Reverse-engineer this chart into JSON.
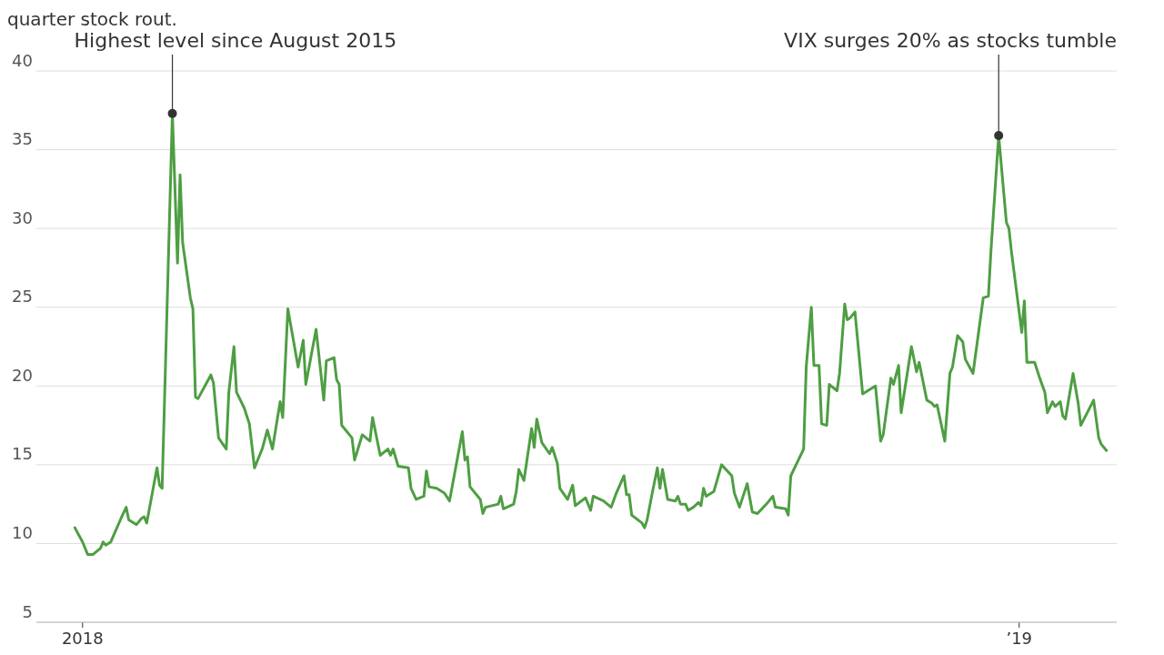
{
  "chart_data": {
    "type": "line",
    "title": "quarter stock rout.",
    "xlim": [
      "2017-12-14",
      "2019-02-08"
    ],
    "xticks": [
      {
        "value": "2018-01-01",
        "label": "2018"
      },
      {
        "value": "2019-01-01",
        "label": "’19"
      }
    ],
    "ylim": [
      5,
      40
    ],
    "yticks": [
      5,
      10,
      15,
      20,
      25,
      30,
      35,
      40
    ],
    "grid": "y",
    "line_style": "solid",
    "annotations": [
      {
        "text": "Highest level since August 2015",
        "x": "2018-02-05",
        "y": 37.3
      },
      {
        "text": "VIX surges 20% as stocks tumble",
        "x": "2018-12-24",
        "y": 35.9
      }
    ],
    "series": [
      {
        "color": "#4e9e43",
        "x": [
          "2017-12-29",
          "2018-01-01",
          "2018-01-03",
          "2018-01-05",
          "2018-01-08",
          "2018-01-09",
          "2018-01-10",
          "2018-01-12",
          "2018-01-16",
          "2018-01-18",
          "2018-01-19",
          "2018-01-22",
          "2018-01-24",
          "2018-01-25",
          "2018-01-26",
          "2018-01-30",
          "2018-01-31",
          "2018-02-01",
          "2018-02-05",
          "2018-02-07",
          "2018-02-08",
          "2018-02-09",
          "2018-02-12",
          "2018-02-13",
          "2018-02-14",
          "2018-02-15",
          "2018-02-20",
          "2018-02-21",
          "2018-02-23",
          "2018-02-26",
          "2018-02-27",
          "2018-03-01",
          "2018-03-02",
          "2018-03-05",
          "2018-03-07",
          "2018-03-09",
          "2018-03-12",
          "2018-03-14",
          "2018-03-16",
          "2018-03-19",
          "2018-03-20",
          "2018-03-22",
          "2018-03-26",
          "2018-03-28",
          "2018-03-29",
          "2018-04-02",
          "2018-04-05",
          "2018-04-06",
          "2018-04-09",
          "2018-04-10",
          "2018-04-11",
          "2018-04-12",
          "2018-04-16",
          "2018-04-17",
          "2018-04-20",
          "2018-04-23",
          "2018-04-24",
          "2018-04-27",
          "2018-04-30",
          "2018-05-01",
          "2018-05-02",
          "2018-05-04",
          "2018-05-08",
          "2018-05-09",
          "2018-05-11",
          "2018-05-14",
          "2018-05-15",
          "2018-05-16",
          "2018-05-19",
          "2018-05-22",
          "2018-05-24",
          "2018-05-29",
          "2018-05-30",
          "2018-05-31",
          "2018-06-01",
          "2018-06-05",
          "2018-06-06",
          "2018-06-07",
          "2018-06-12",
          "2018-06-13",
          "2018-06-14",
          "2018-06-18",
          "2018-06-19",
          "2018-06-20",
          "2018-06-22",
          "2018-06-25",
          "2018-06-26",
          "2018-06-27",
          "2018-06-29",
          "2018-07-02",
          "2018-07-03",
          "2018-07-05",
          "2018-07-06",
          "2018-07-09",
          "2018-07-11",
          "2018-07-12",
          "2018-07-16",
          "2018-07-18",
          "2018-07-19",
          "2018-07-23",
          "2018-07-26",
          "2018-07-28",
          "2018-07-31",
          "2018-08-01",
          "2018-08-02",
          "2018-08-03",
          "2018-08-07",
          "2018-08-08",
          "2018-08-09",
          "2018-08-11",
          "2018-08-13",
          "2018-08-14",
          "2018-08-15",
          "2018-08-17",
          "2018-08-20",
          "2018-08-21",
          "2018-08-22",
          "2018-08-24",
          "2018-08-25",
          "2018-08-27",
          "2018-08-29",
          "2018-08-30",
          "2018-08-31",
          "2018-09-01",
          "2018-09-04",
          "2018-09-07",
          "2018-09-11",
          "2018-09-12",
          "2018-09-14",
          "2018-09-17",
          "2018-09-19",
          "2018-09-21",
          "2018-09-25",
          "2018-09-27",
          "2018-09-28",
          "2018-10-02",
          "2018-10-03",
          "2018-10-04",
          "2018-10-09",
          "2018-10-10",
          "2018-10-12",
          "2018-10-13",
          "2018-10-15",
          "2018-10-16",
          "2018-10-18",
          "2018-10-19",
          "2018-10-22",
          "2018-10-23",
          "2018-10-25",
          "2018-10-26",
          "2018-10-27",
          "2018-10-29",
          "2018-11-01",
          "2018-11-06",
          "2018-11-08",
          "2018-11-09",
          "2018-11-12",
          "2018-11-13",
          "2018-11-15",
          "2018-11-16",
          "2018-11-20",
          "2018-11-22",
          "2018-11-23",
          "2018-11-26",
          "2018-11-28",
          "2018-11-29",
          "2018-11-30",
          "2018-12-03",
          "2018-12-05",
          "2018-12-06",
          "2018-12-08",
          "2018-12-10",
          "2018-12-11",
          "2018-12-14",
          "2018-12-18",
          "2018-12-20",
          "2018-12-21",
          "2018-12-24",
          "2018-12-27",
          "2018-12-28",
          "2018-12-29",
          "2019-01-02",
          "2019-01-03",
          "2019-01-04",
          "2019-01-07",
          "2019-01-09",
          "2019-01-11",
          "2019-01-12",
          "2019-01-14",
          "2019-01-15",
          "2019-01-17",
          "2019-01-18",
          "2019-01-19",
          "2019-01-22",
          "2019-01-24",
          "2019-01-25",
          "2019-01-30",
          "2019-02-01",
          "2019-02-02",
          "2019-02-04"
        ],
        "values": [
          11.0,
          10.1,
          9.3,
          9.3,
          9.7,
          10.1,
          9.9,
          10.1,
          11.6,
          12.3,
          11.5,
          11.2,
          11.6,
          11.7,
          11.3,
          14.8,
          13.7,
          13.5,
          37.3,
          27.8,
          33.4,
          29.1,
          25.6,
          24.9,
          19.3,
          19.2,
          20.7,
          20.2,
          16.7,
          16.0,
          19.6,
          22.5,
          19.6,
          18.6,
          17.6,
          14.8,
          16.0,
          17.2,
          16.0,
          19.0,
          18.0,
          24.9,
          21.2,
          22.9,
          20.1,
          23.6,
          19.1,
          21.6,
          21.8,
          20.4,
          20.1,
          17.5,
          16.7,
          15.3,
          16.9,
          16.5,
          18.0,
          15.6,
          16.0,
          15.6,
          16.0,
          14.9,
          14.8,
          13.5,
          12.8,
          13.0,
          14.6,
          13.6,
          13.5,
          13.2,
          12.7,
          17.1,
          15.3,
          15.5,
          13.6,
          12.8,
          11.9,
          12.3,
          12.5,
          13.0,
          12.2,
          12.5,
          13.3,
          14.7,
          14.0,
          17.3,
          16.1,
          17.9,
          16.4,
          15.7,
          16.1,
          15.1,
          13.5,
          12.8,
          13.7,
          12.4,
          12.9,
          12.1,
          13.0,
          12.7,
          12.3,
          13.2,
          14.3,
          13.1,
          13.1,
          11.8,
          11.3,
          11.0,
          11.5,
          13.2,
          14.8,
          13.5,
          14.7,
          12.8,
          12.7,
          13.0,
          12.5,
          12.5,
          12.1,
          12.3,
          12.6,
          12.4,
          13.5,
          13.0,
          13.3,
          15.0,
          14.3,
          13.2,
          12.3,
          13.8,
          12.0,
          11.9,
          12.6,
          13.0,
          12.3,
          12.2,
          11.8,
          14.3,
          16.0,
          21.2,
          25.0,
          21.3,
          21.3,
          17.6,
          17.5,
          20.1,
          19.7,
          20.8,
          25.2,
          24.2,
          24.3,
          24.7,
          19.5,
          20.0,
          16.5,
          16.9,
          20.5,
          20.1,
          21.3,
          18.3,
          22.5,
          20.9,
          21.5,
          19.1,
          18.9,
          18.7,
          18.8,
          16.5,
          20.8,
          21.2,
          23.2,
          22.8,
          21.7,
          20.8,
          25.6,
          25.7,
          28.6,
          35.9,
          30.4,
          30.0,
          28.5,
          23.4,
          25.4,
          21.5,
          21.5,
          20.5,
          19.6,
          18.3,
          19.0,
          18.7,
          19.0,
          18.1,
          17.9,
          20.8,
          18.9,
          17.5,
          19.1,
          16.7,
          16.3,
          15.9
        ]
      }
    ]
  }
}
